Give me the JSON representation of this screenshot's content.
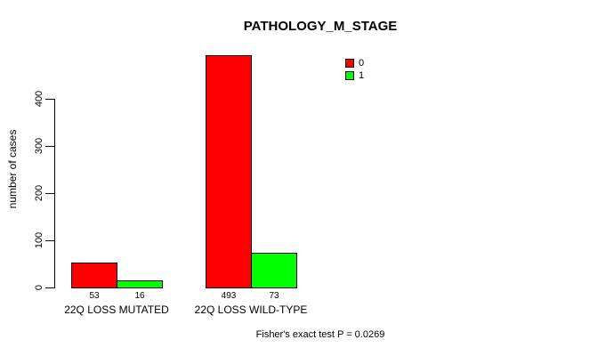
{
  "chart_data": {
    "type": "bar",
    "title": "PATHOLOGY_M_STAGE",
    "ylabel": "number of cases",
    "xlabel": "",
    "categories": [
      "22Q LOSS MUTATED",
      "22Q LOSS WILD-TYPE"
    ],
    "series": [
      {
        "name": "0",
        "color": "#ff0000",
        "values": [
          53,
          493
        ]
      },
      {
        "name": "1",
        "color": "#00ff00",
        "values": [
          16,
          73
        ]
      }
    ],
    "ylim": [
      0,
      400
    ],
    "yticks": [
      0,
      100,
      200,
      300,
      400
    ],
    "grid": false,
    "legend_position": "top-right",
    "bar_border_color": "#000000",
    "background_color": "#ffffff",
    "annotation": "Fisher's exact test P = 0.0269"
  }
}
